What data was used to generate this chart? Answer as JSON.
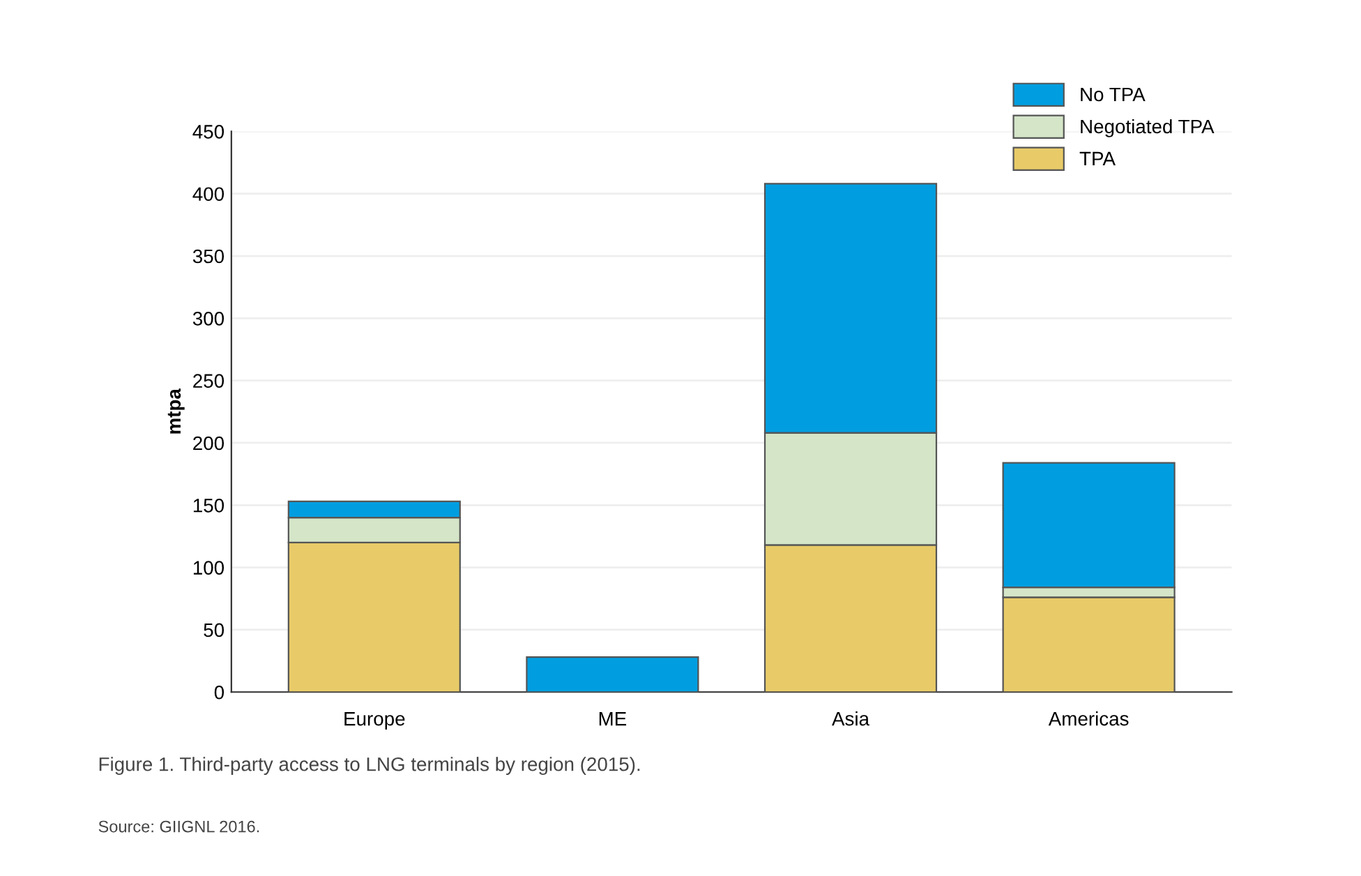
{
  "chart_data": {
    "type": "bar",
    "stacked": true,
    "ylabel": "mtpa",
    "categories": [
      "Europe",
      "ME",
      "Asia",
      "Americas"
    ],
    "series": [
      {
        "name": "TPA",
        "color": "#e8cb68",
        "values": [
          120,
          0,
          118,
          76
        ]
      },
      {
        "name": "Negotiated TPA",
        "color": "#d4e5c8",
        "values": [
          20,
          0,
          90,
          8
        ]
      },
      {
        "name": "No TPA",
        "color": "#009ee0",
        "values": [
          13,
          28,
          200,
          100
        ]
      }
    ],
    "ylim": [
      0,
      450
    ],
    "yticks": [
      0,
      50,
      100,
      150,
      200,
      250,
      300,
      350,
      400,
      450
    ],
    "grid": "y",
    "legend": "top right",
    "annotations": [
      "Figure 1. Third-party access to LNG terminals by region (2015).",
      "Source: GIIGNL 2016."
    ]
  }
}
